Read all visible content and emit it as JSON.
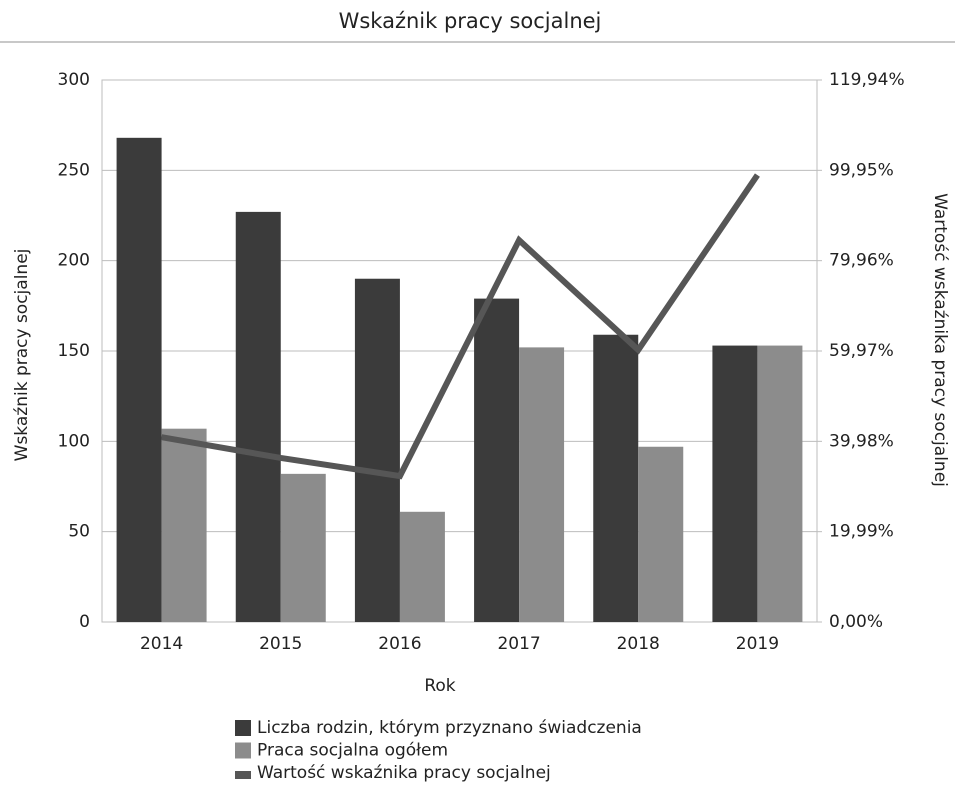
{
  "chart_data": {
    "type": "bar",
    "title": "Wskaźnik pracy socjalnej",
    "x_label": "Rok",
    "y_label": "Wskaźnik pracy socjalnej",
    "y2_label": "Wartość wskaźnika pracy socjalnej",
    "categories": [
      "2014",
      "2015",
      "2016",
      "2017",
      "2018",
      "2019"
    ],
    "series": [
      {
        "name": "Liczba rodzin, którym przyznano świadczenia",
        "color": "#3b3b3b",
        "values": [
          268,
          227,
          190,
          179,
          159,
          153
        ]
      },
      {
        "name": "Praca socjalna ogółem",
        "color": "#8c8c8c",
        "values": [
          107,
          82,
          61,
          152,
          97,
          153
        ]
      },
      {
        "name": "Wartość wskaźnika pracy socjalnej",
        "color": "#565656",
        "type": "line",
        "axis": "y2",
        "values": [
          40.9,
          36.3,
          32.3,
          84.5,
          60.2,
          98.9
        ]
      }
    ],
    "ylim": [
      0,
      300
    ],
    "yticks": [
      0,
      50,
      100,
      150,
      200,
      250,
      300
    ],
    "y2lim": [
      0,
      119.94
    ],
    "y2ticks": [
      {
        "value": 0,
        "label": "0,00%"
      },
      {
        "value": 19.99,
        "label": "19,99%"
      },
      {
        "value": 39.98,
        "label": "39,98%"
      },
      {
        "value": 59.97,
        "label": "59,97%"
      },
      {
        "value": 79.96,
        "label": "79,96%"
      },
      {
        "value": 99.95,
        "label": "99,95%"
      },
      {
        "value": 119.94,
        "label": "119,94%"
      }
    ],
    "grid": true,
    "legend": "bottom"
  }
}
